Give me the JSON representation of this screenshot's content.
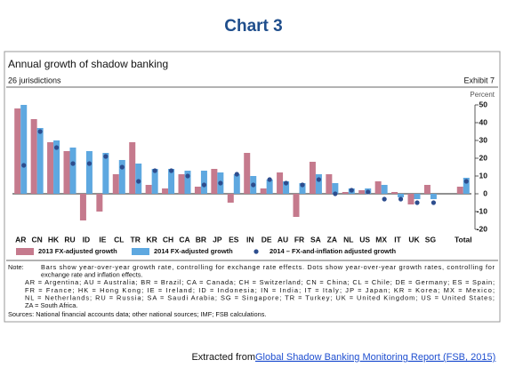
{
  "header": {
    "title": "Chart 3"
  },
  "chart_data": {
    "type": "bar",
    "title": "Annual growth of shadow banking",
    "subtitle": "26 jurisdictions",
    "exhibit": "Exhibit 7",
    "ylabel": "Percent",
    "categories": [
      "AR",
      "CN",
      "HK",
      "RU",
      "ID",
      "IE",
      "CL",
      "TR",
      "KR",
      "CH",
      "CA",
      "BR",
      "JP",
      "ES",
      "IN",
      "DE",
      "AU",
      "FR",
      "SA",
      "ZA",
      "NL",
      "US",
      "MX",
      "IT",
      "UK",
      "SG",
      null,
      "Total"
    ],
    "series": [
      {
        "name": "2013 FX-adjusted growth",
        "color": "#c57a8d",
        "mark": "bar",
        "values": [
          48,
          42,
          29,
          24,
          -15,
          -10,
          11,
          29,
          5,
          3,
          11,
          4,
          14,
          -5,
          23,
          3,
          12,
          -13,
          18,
          11,
          1,
          2,
          7,
          1,
          -6,
          5,
          null,
          4
        ]
      },
      {
        "name": "2014 FX-adjusted growth",
        "color": "#5ea8e0",
        "mark": "bar",
        "values": [
          50,
          37,
          30,
          26,
          24,
          23,
          19,
          17,
          14,
          14,
          13,
          13,
          12,
          11,
          10,
          8,
          7,
          6,
          11,
          6,
          3,
          3,
          5,
          -2,
          -3,
          -3,
          null,
          9
        ]
      },
      {
        "name": "2014 – FX-and-inflation adjusted growth",
        "color": "#2d4d8e",
        "mark": "dot",
        "values": [
          16,
          35,
          26,
          17,
          17,
          21,
          15,
          7,
          13,
          13,
          10,
          5,
          6,
          11,
          5,
          8,
          6,
          5,
          8,
          0,
          2,
          1,
          -3,
          -3,
          -5,
          -5,
          null,
          7
        ]
      }
    ],
    "ylim": [
      -20,
      50
    ],
    "yticks": [
      -20,
      -10,
      0,
      10,
      20,
      30,
      40,
      50
    ],
    "y_axis_side": "right"
  },
  "notes": {
    "label": "Note:",
    "lines": [
      "Bars show year-over-year growth rate, controlling for exchange rate effects. Dots show year-over-year growth rates, controlling for",
      "exchange rate and inflation effects.",
      "AR = Argentina; AU = Australia; BR = Brazil; CA = Canada; CH = Switzerland; CN = China; CL = Chile; DE = Germany; ES = Spain;",
      "FR = France; HK = Hong Kong; IE = Ireland; ID = Indonesia; IN = India; IT = Italy; JP = Japan; KR = Korea; MX = Mexico;",
      "NL = Netherlands; RU = Russia; SA = Saudi Arabia; SG = Singapore; TR = Turkey; UK = United Kingdom; US = United States;",
      "ZA = South Africa."
    ],
    "sources": "Sources: National financial accounts data; other national sources; IMF; FSB calculations."
  },
  "footer": {
    "prefix": "Extracted from ",
    "link": "Global Shadow Banking Monitoring Report (FSB, 2015)"
  }
}
